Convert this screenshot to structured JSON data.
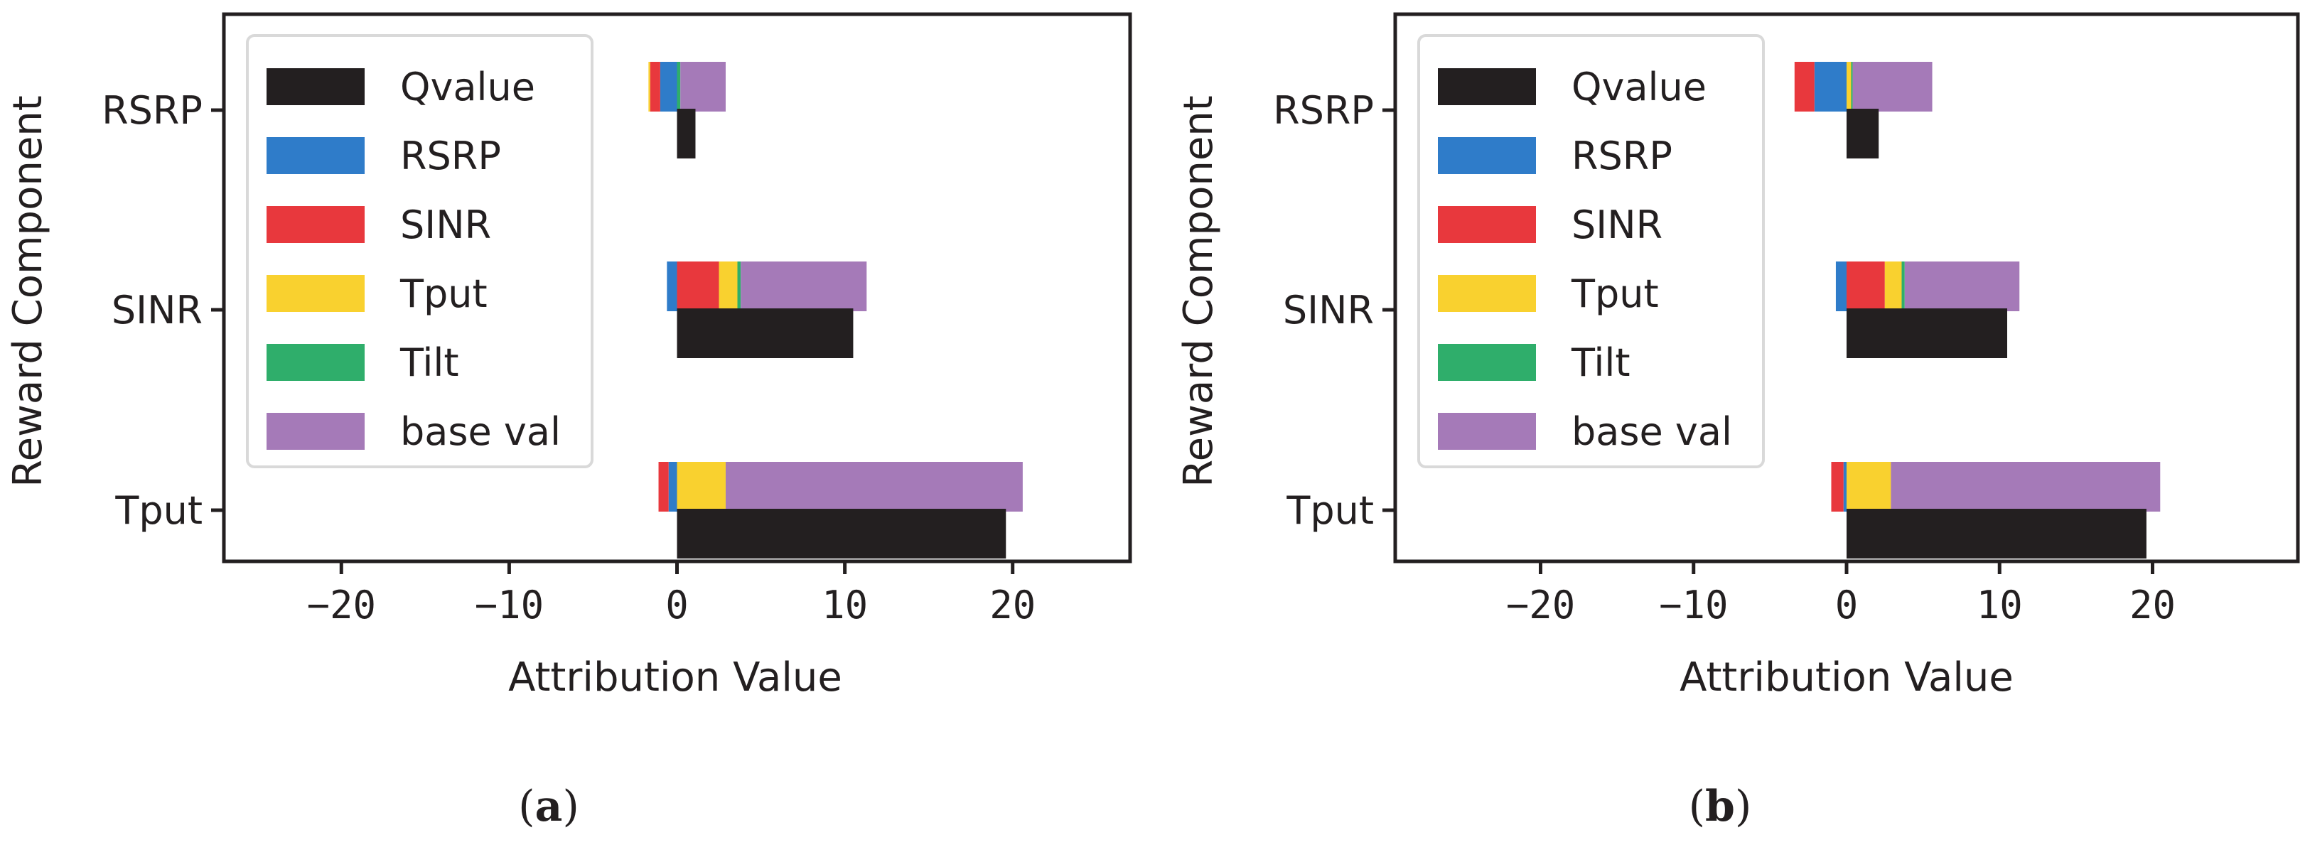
{
  "chart_data": [
    {
      "type": "bar",
      "orientation": "horizontal",
      "panel_label": "a",
      "xlabel": "Attribution Value",
      "ylabel": "Reward Component",
      "xlim": [
        -27,
        27
      ],
      "xticks": [
        -20,
        -10,
        0,
        10,
        20
      ],
      "xtick_labels": [
        "−20",
        "−10",
        "0",
        "10",
        "20"
      ],
      "categories": [
        "RSRP",
        "SINR",
        "Tput"
      ],
      "qvalue": {
        "name": "Qvalue",
        "values": [
          1.1,
          10.5,
          19.6
        ]
      },
      "components": [
        {
          "name": "RSRP",
          "color": "#2f7cc9",
          "values": [
            -1.0,
            -0.6,
            -0.5
          ]
        },
        {
          "name": "SINR",
          "color": "#e8383d",
          "values": [
            -0.6,
            2.5,
            -0.6
          ]
        },
        {
          "name": "Tput",
          "color": "#f9d12f",
          "values": [
            -0.1,
            1.1,
            2.9
          ]
        },
        {
          "name": "Tilt",
          "color": "#2fae6b",
          "values": [
            0.2,
            0.2,
            0.0
          ]
        },
        {
          "name": "base val",
          "color": "#a57ab8",
          "values": [
            2.7,
            7.5,
            17.7
          ]
        }
      ],
      "legend": [
        "Qvalue",
        "RSRP",
        "SINR",
        "Tput",
        "Tilt",
        "base val"
      ],
      "legend_location": "upper-left"
    },
    {
      "type": "bar",
      "orientation": "horizontal",
      "panel_label": "b",
      "xlabel": "Attribution Value",
      "ylabel": "Reward Component",
      "xlim": [
        -29.5,
        29.5
      ],
      "xticks": [
        -20,
        -10,
        0,
        10,
        20
      ],
      "xtick_labels": [
        "−20",
        "−10",
        "0",
        "10",
        "20"
      ],
      "categories": [
        "RSRP",
        "SINR",
        "Tput"
      ],
      "qvalue": {
        "name": "Qvalue",
        "values": [
          2.1,
          10.5,
          19.6
        ]
      },
      "components": [
        {
          "name": "RSRP",
          "color": "#2f7cc9",
          "values": [
            -2.1,
            -0.7,
            -0.2
          ]
        },
        {
          "name": "SINR",
          "color": "#e8383d",
          "values": [
            -1.3,
            2.5,
            -0.8
          ]
        },
        {
          "name": "Tput",
          "color": "#f9d12f",
          "values": [
            0.3,
            1.1,
            2.9
          ]
        },
        {
          "name": "Tilt",
          "color": "#2fae6b",
          "values": [
            0.1,
            0.2,
            0.0
          ]
        },
        {
          "name": "base val",
          "color": "#a57ab8",
          "values": [
            5.2,
            7.5,
            17.6
          ]
        }
      ],
      "legend": [
        "Qvalue",
        "RSRP",
        "SINR",
        "Tput",
        "Tilt",
        "base val"
      ],
      "legend_location": "upper-left"
    }
  ],
  "colors": {
    "qvalue": "#231f20",
    "axis": "#231f20",
    "legend_border": "#d9d9d9"
  },
  "captions": [
    {
      "open": "(",
      "letter": "a",
      "close": ")"
    },
    {
      "open": "(",
      "letter": "b",
      "close": ")"
    }
  ]
}
